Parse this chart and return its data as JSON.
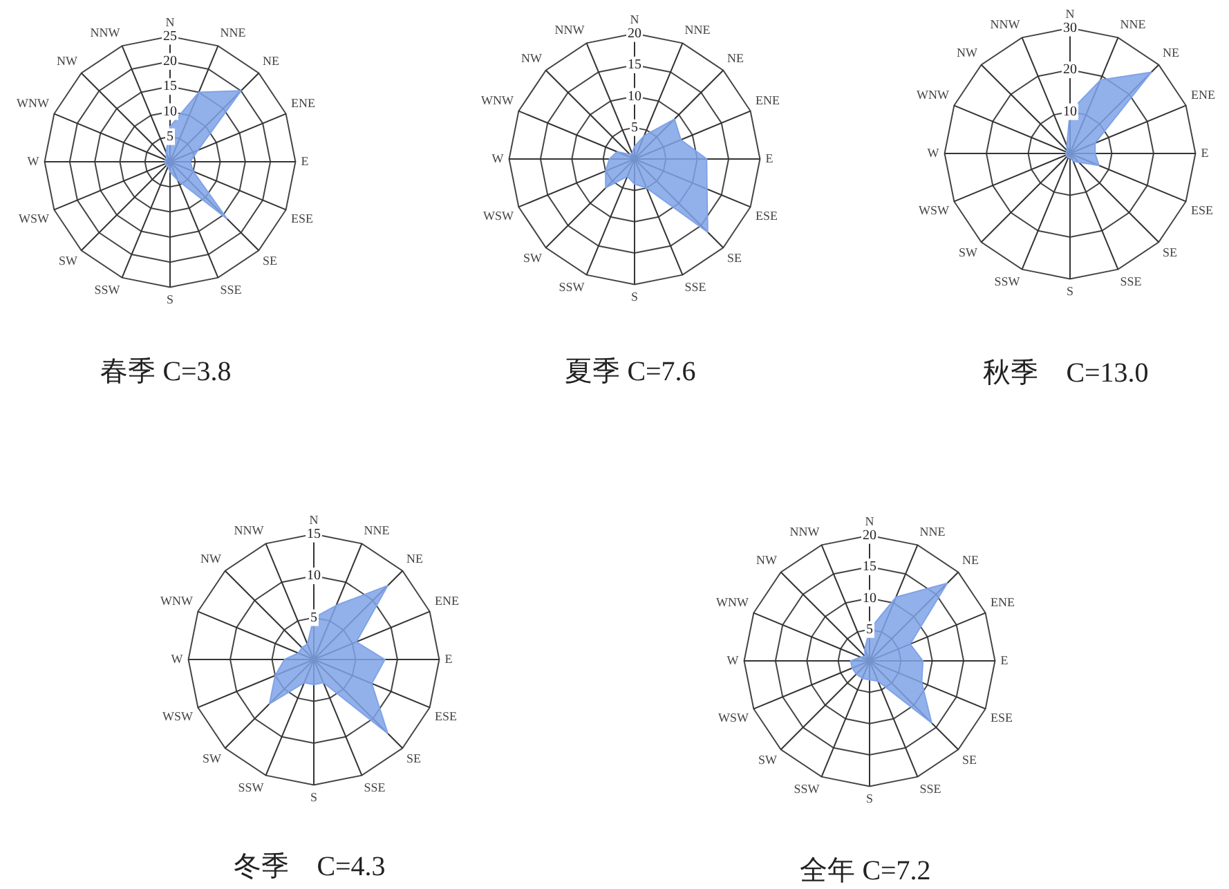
{
  "chart_data": [
    {
      "type": "radar",
      "title": "春季 C=3.8",
      "categories": [
        "N",
        "NNE",
        "NE",
        "ENE",
        "E",
        "ESE",
        "SE",
        "SSE",
        "S",
        "SSW",
        "SW",
        "WSW",
        "W",
        "WNW",
        "NW",
        "NNW"
      ],
      "series": [
        {
          "color": "#7fa3e8",
          "values": [
            7,
            15,
            20,
            6,
            4,
            5,
            16,
            4,
            2,
            1,
            1,
            1,
            1,
            1,
            1,
            2
          ]
        }
      ],
      "ylim": [
        0,
        25
      ],
      "yticks": [
        5,
        10,
        15,
        20,
        25
      ],
      "grid": true,
      "marker": "none"
    },
    {
      "type": "radar",
      "title": "夏季 C=7.6",
      "categories": [
        "N",
        "NNE",
        "NE",
        "ENE",
        "E",
        "ESE",
        "SE",
        "SSE",
        "S",
        "SSW",
        "SW",
        "WSW",
        "W",
        "WNW",
        "NW",
        "NNW"
      ],
      "series": [
        {
          "color": "#7fa3e8",
          "values": [
            2,
            4,
            9,
            8,
            11.5,
            12.5,
            16.5,
            5,
            4,
            3,
            6.5,
            5,
            4,
            3,
            1,
            1
          ]
        }
      ],
      "ylim": [
        0,
        20
      ],
      "yticks": [
        5,
        10,
        15,
        20
      ],
      "grid": true,
      "marker": "none"
    },
    {
      "type": "radar",
      "title": "秋季　C=13.0",
      "categories": [
        "N",
        "NNE",
        "NE",
        "ENE",
        "E",
        "ESE",
        "SE",
        "SSE",
        "S",
        "SSW",
        "SW",
        "WSW",
        "W",
        "WNW",
        "NW",
        "NNW"
      ],
      "series": [
        {
          "color": "#7fa3e8",
          "values": [
            10,
            19,
            27.5,
            6.5,
            6,
            7.5,
            3,
            2,
            1,
            1,
            1,
            1,
            1,
            1,
            1,
            2
          ]
        }
      ],
      "ylim": [
        0,
        30
      ],
      "yticks": [
        10,
        20,
        30
      ],
      "grid": true,
      "marker": "none"
    },
    {
      "type": "radar",
      "title": "冬季　C=4.3",
      "categories": [
        "N",
        "NNE",
        "NE",
        "ENE",
        "E",
        "ESE",
        "SE",
        "SSE",
        "S",
        "SSW",
        "SW",
        "WSW",
        "W",
        "WNW",
        "NW",
        "NNW"
      ],
      "series": [
        {
          "color": "#7fa3e8",
          "values": [
            5,
            7,
            12.5,
            5.5,
            8.5,
            7.5,
            12.5,
            3,
            3,
            3,
            7.5,
            5,
            3.5,
            2,
            2,
            2
          ]
        }
      ],
      "ylim": [
        0,
        15
      ],
      "yticks": [
        5,
        10,
        15
      ],
      "grid": true,
      "marker": "none"
    },
    {
      "type": "radar",
      "title": "全年 C=7.2",
      "categories": [
        "N",
        "NNE",
        "NE",
        "ENE",
        "E",
        "ESE",
        "SE",
        "SSE",
        "S",
        "SSW",
        "SW",
        "WSW",
        "W",
        "WNW",
        "NW",
        "NNW"
      ],
      "series": [
        {
          "color": "#7fa3e8",
          "values": [
            5,
            11,
            17.5,
            7,
            8.5,
            9,
            14,
            3.5,
            3,
            3,
            3,
            3,
            3,
            1.5,
            1,
            2
          ]
        }
      ],
      "ylim": [
        0,
        20
      ],
      "yticks": [
        5,
        10,
        15,
        20
      ],
      "grid": true,
      "marker": "none"
    }
  ]
}
